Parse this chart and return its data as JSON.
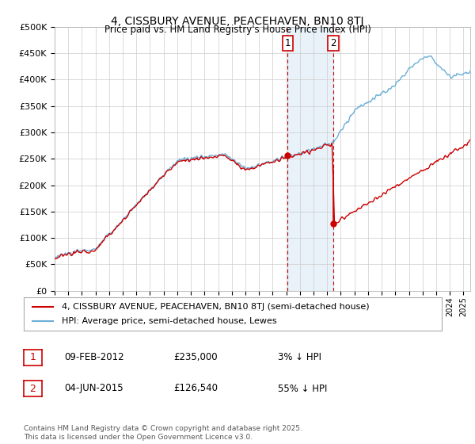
{
  "title": "4, CISSBURY AVENUE, PEACEHAVEN, BN10 8TJ",
  "subtitle": "Price paid vs. HM Land Registry's House Price Index (HPI)",
  "ylabel_ticks": [
    "£0",
    "£50K",
    "£100K",
    "£150K",
    "£200K",
    "£250K",
    "£300K",
    "£350K",
    "£400K",
    "£450K",
    "£500K"
  ],
  "ylim": [
    0,
    500000
  ],
  "xlim_start": 1995.0,
  "xlim_end": 2025.5,
  "legend_line1": "4, CISSBURY AVENUE, PEACEHAVEN, BN10 8TJ (semi-detached house)",
  "legend_line2": "HPI: Average price, semi-detached house, Lewes",
  "transaction1_date": "09-FEB-2012",
  "transaction1_price": "£235,000",
  "transaction1_pct": "3% ↓ HPI",
  "transaction2_date": "04-JUN-2015",
  "transaction2_price": "£126,540",
  "transaction2_pct": "55% ↓ HPI",
  "footnote": "Contains HM Land Registry data © Crown copyright and database right 2025.\nThis data is licensed under the Open Government Licence v3.0.",
  "hpi_color": "#6baed6",
  "price_color": "#cc0000",
  "transaction1_x": 2012.1,
  "transaction2_x": 2015.45,
  "background_color": "#ffffff",
  "grid_color": "#cccccc",
  "transaction1_price_val": 235000,
  "transaction2_price_val": 126540
}
